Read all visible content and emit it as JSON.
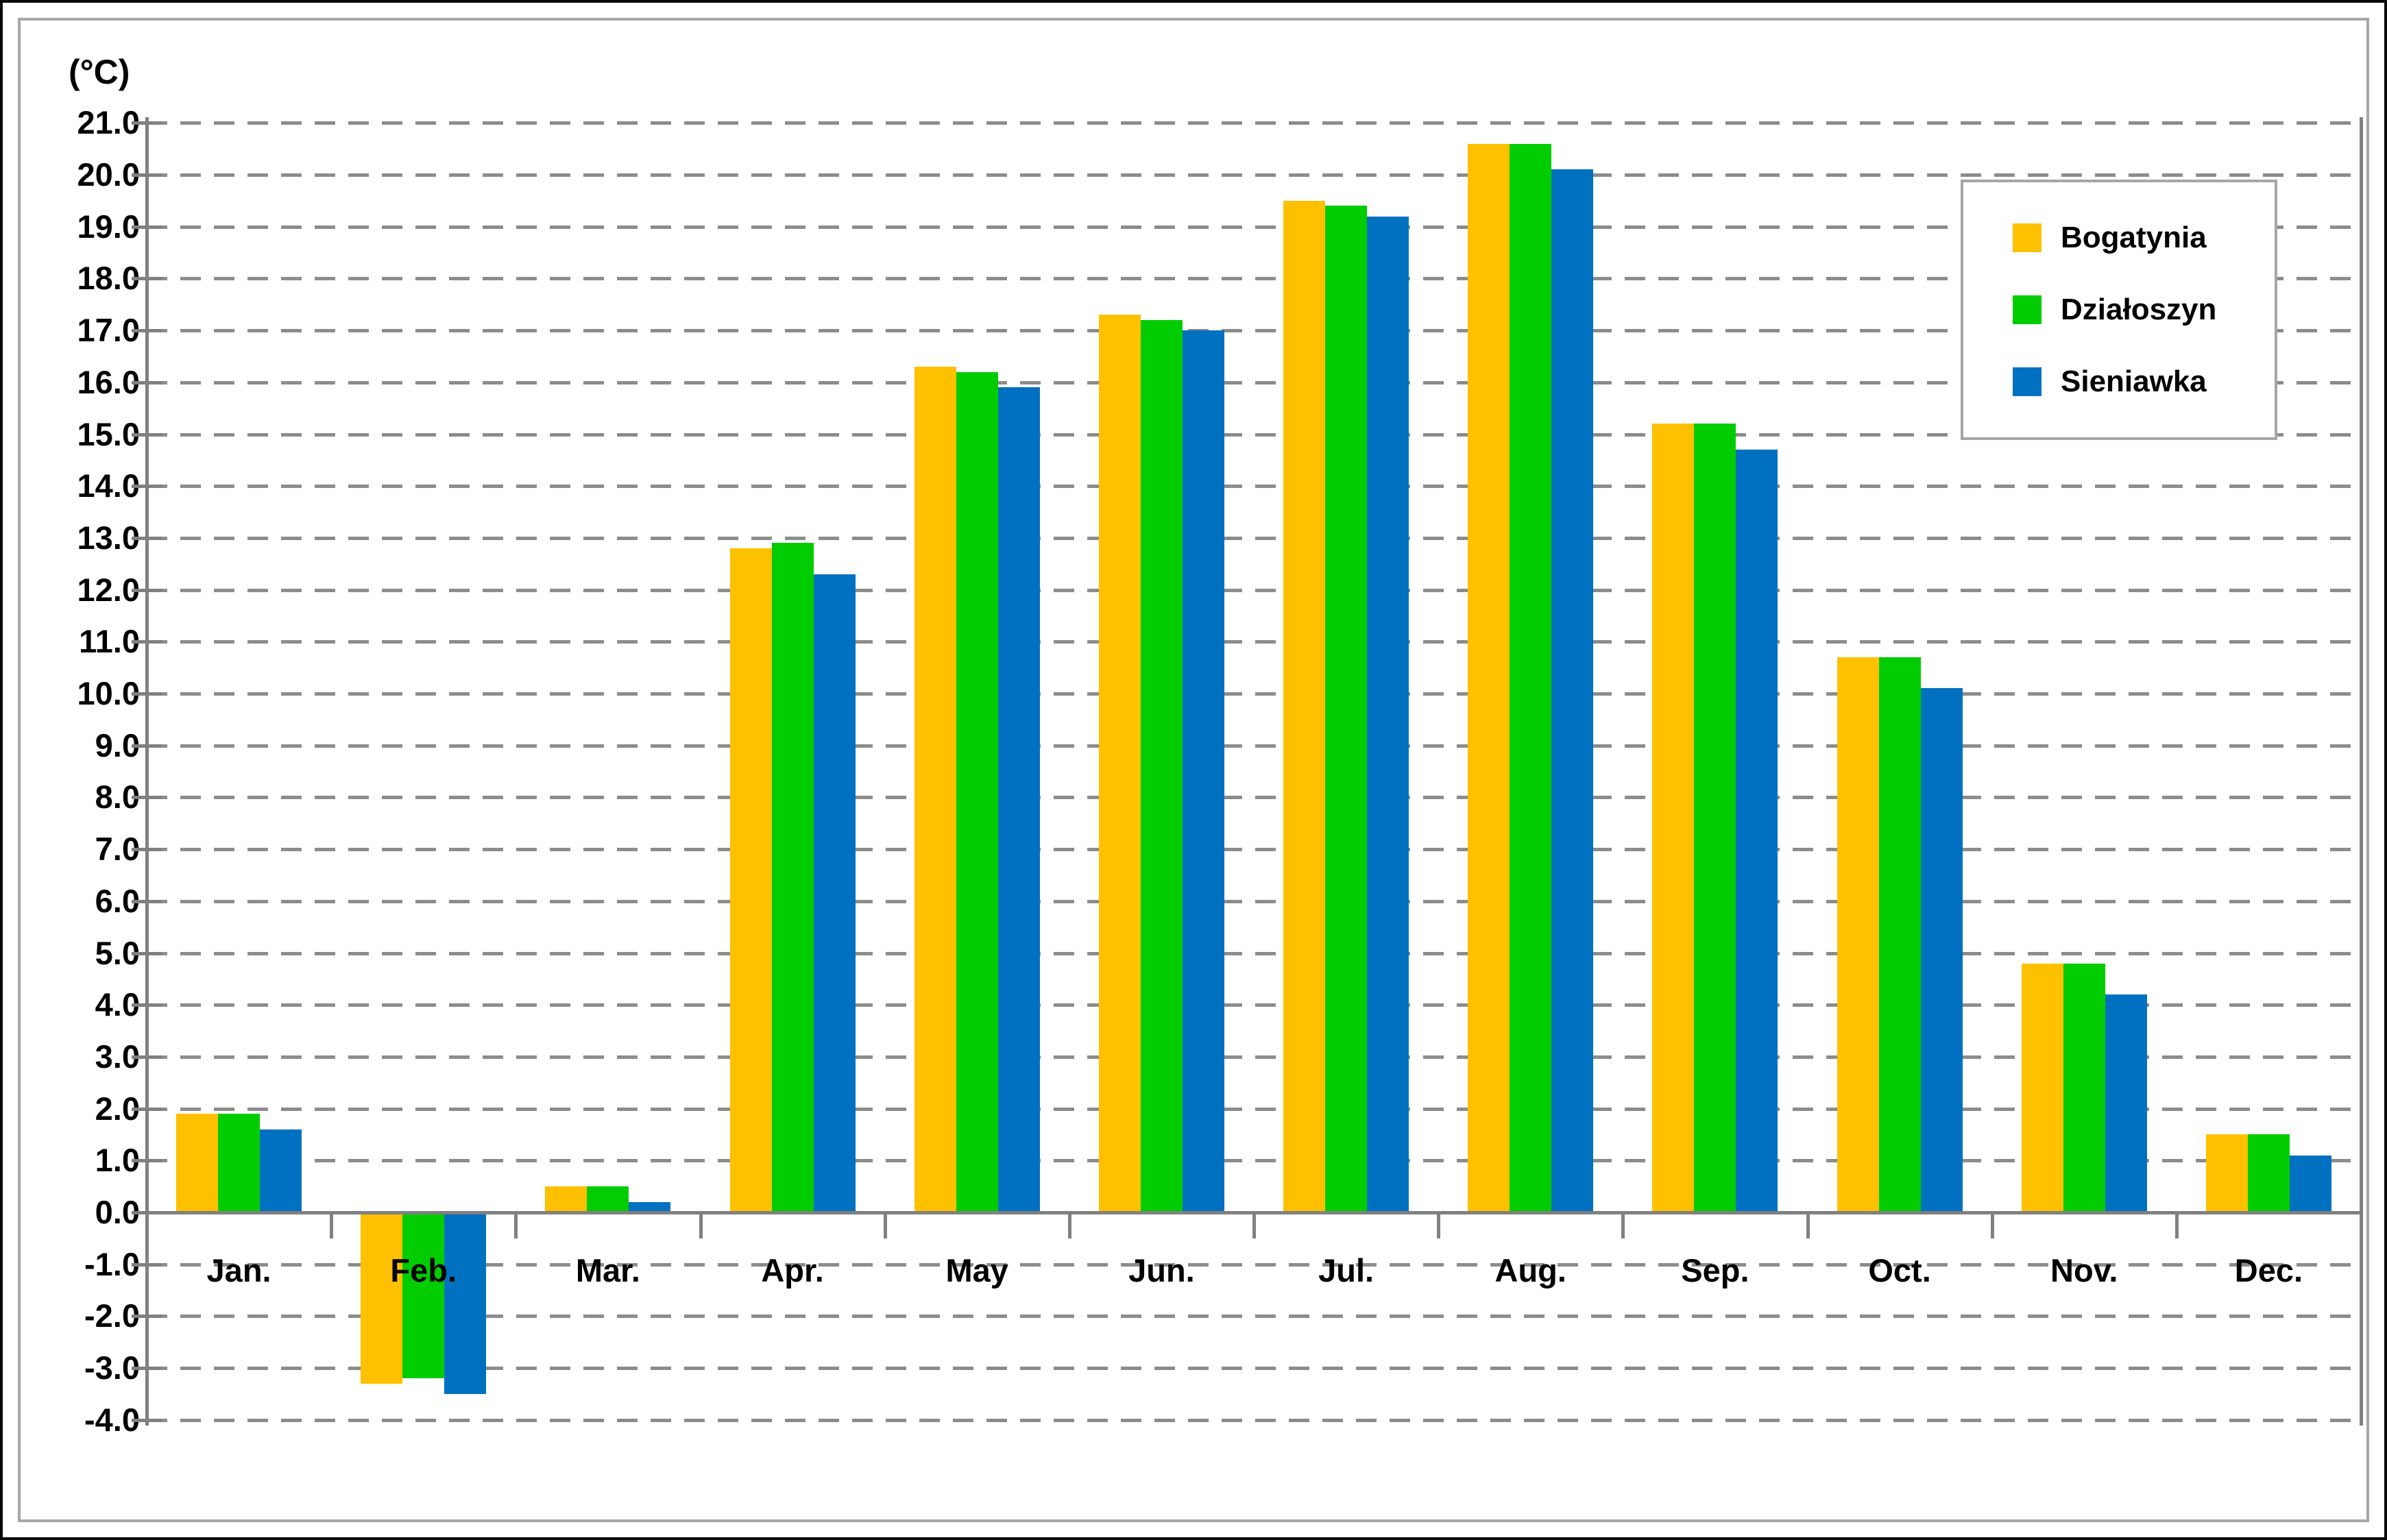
{
  "chart_data": {
    "type": "bar",
    "title": "",
    "ylabel": "(°C)",
    "xlabel": "",
    "categories": [
      "Jan.",
      "Feb.",
      "Mar.",
      "Apr.",
      "May",
      "Jun.",
      "Jul.",
      "Aug.",
      "Sep.",
      "Oct.",
      "Nov.",
      "Dec."
    ],
    "series": [
      {
        "name": "Bogatynia",
        "color": "#FFC000",
        "values": [
          1.9,
          -3.3,
          0.5,
          12.8,
          16.3,
          17.3,
          19.5,
          20.6,
          15.2,
          10.7,
          4.8,
          1.5
        ]
      },
      {
        "name": "Działoszyn",
        "color": "#00CC00",
        "values": [
          1.9,
          -3.2,
          0.5,
          12.9,
          16.2,
          17.2,
          19.4,
          20.6,
          15.2,
          10.7,
          4.8,
          1.5
        ]
      },
      {
        "name": "Sieniawka",
        "color": "#0070C0",
        "values": [
          1.6,
          -3.5,
          0.2,
          12.3,
          15.9,
          17.0,
          19.2,
          20.1,
          14.7,
          10.1,
          4.2,
          1.1
        ]
      }
    ],
    "ylim": [
      -4.0,
      21.0
    ],
    "ytick_step": 1.0,
    "ytick_labels": [
      "21.0",
      "20.0",
      "19.0",
      "18.0",
      "17.0",
      "16.0",
      "15.0",
      "14.0",
      "13.0",
      "12.0",
      "11.0",
      "10.0",
      "9.0",
      "8.0",
      "7.0",
      "6.0",
      "5.0",
      "4.0",
      "3.0",
      "2.0",
      "1.0",
      "0.0",
      "-1.0",
      "-2.0",
      "-3.0",
      "-4.0"
    ],
    "grid": "horizontal-dashed",
    "legend_position": "top-right",
    "colors": {
      "grid": "#8c8c8c",
      "axis": "#808080",
      "chart_border": "#a6a6a6",
      "outer_border": "#0a0a0a",
      "background": "#ffffff",
      "text": "#000000"
    }
  }
}
